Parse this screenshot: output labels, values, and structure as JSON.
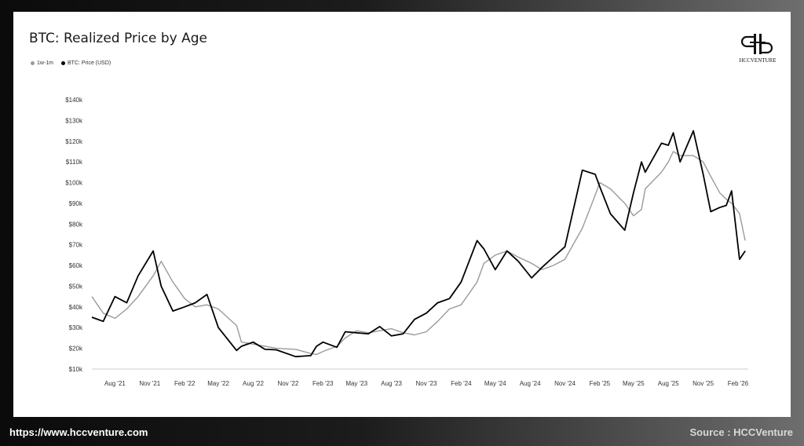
{
  "footer": {
    "website": "https://www.hccventure.com",
    "source": "Source : HCCVenture"
  },
  "logo": {
    "text": "HCCVENTURE"
  },
  "colors": {
    "price": "#000000",
    "realized": "#9a9a9a",
    "axis": "#cccccc",
    "tick": "#333333"
  },
  "chart_data": {
    "type": "line",
    "title": "BTC: Realized Price by Age",
    "xlabel": "",
    "ylabel": "",
    "legend_position": "top-left",
    "grid": false,
    "ylim": [
      10000,
      140000
    ],
    "yticks": [
      10000,
      20000,
      30000,
      40000,
      50000,
      60000,
      70000,
      80000,
      90000,
      100000,
      110000,
      120000,
      130000,
      140000
    ],
    "ytick_labels": [
      "$10k",
      "$20k",
      "$30k",
      "$40k",
      "$50k",
      "$60k",
      "$70k",
      "$80k",
      "$90k",
      "$100k",
      "$110k",
      "$120k",
      "$130k",
      "$140k"
    ],
    "xlim": [
      "2021-06-01",
      "2026-02-28"
    ],
    "xticks": [
      "2021-08-01",
      "2021-11-01",
      "2022-02-01",
      "2022-05-01",
      "2022-08-01",
      "2022-11-01",
      "2023-02-01",
      "2023-05-01",
      "2023-08-01",
      "2023-11-01",
      "2024-02-01",
      "2024-05-01",
      "2024-08-01",
      "2024-11-01",
      "2025-02-01",
      "2025-05-01",
      "2025-08-01",
      "2025-11-01",
      "2026-02-01"
    ],
    "xtick_labels": [
      "Aug '21",
      "Nov '21",
      "Feb '22",
      "May '22",
      "Aug '22",
      "Nov '22",
      "Feb '23",
      "May '23",
      "Aug '23",
      "Nov '23",
      "Feb '24",
      "May '24",
      "Aug '24",
      "Nov '24",
      "Feb '25",
      "May '25",
      "Aug '25",
      "Nov '25",
      "Feb '26"
    ],
    "x": [
      "2021-06-01",
      "2021-07-01",
      "2021-08-01",
      "2021-09-01",
      "2021-10-01",
      "2021-11-10",
      "2021-12-01",
      "2022-01-01",
      "2022-02-01",
      "2022-03-01",
      "2022-04-01",
      "2022-05-01",
      "2022-06-18",
      "2022-07-01",
      "2022-08-01",
      "2022-09-01",
      "2022-10-01",
      "2022-11-21",
      "2022-12-31",
      "2023-01-15",
      "2023-02-01",
      "2023-03-10",
      "2023-04-01",
      "2023-05-01",
      "2023-06-01",
      "2023-07-01",
      "2023-08-01",
      "2023-09-01",
      "2023-10-01",
      "2023-11-01",
      "2023-12-01",
      "2024-01-01",
      "2024-02-01",
      "2024-03-14",
      "2024-04-01",
      "2024-05-01",
      "2024-06-01",
      "2024-07-01",
      "2024-08-05",
      "2024-09-01",
      "2024-10-01",
      "2024-11-01",
      "2024-12-17",
      "2025-01-20",
      "2025-02-01",
      "2025-03-01",
      "2025-04-08",
      "2025-05-01",
      "2025-05-22",
      "2025-06-01",
      "2025-07-14",
      "2025-08-01",
      "2025-08-14",
      "2025-09-01",
      "2025-10-06",
      "2025-11-01",
      "2025-11-21",
      "2025-12-15",
      "2026-01-01",
      "2026-01-15",
      "2026-02-05",
      "2026-02-20"
    ],
    "series": [
      {
        "name": "1w-1m",
        "values": [
          45000,
          37000,
          34500,
          39000,
          45000,
          55000,
          62000,
          52000,
          44000,
          40000,
          41000,
          39000,
          31000,
          23000,
          22000,
          21000,
          20000,
          19500,
          17500,
          17000,
          18500,
          21000,
          25000,
          28500,
          27500,
          28500,
          29500,
          27500,
          26500,
          28000,
          33000,
          39000,
          41000,
          52000,
          61000,
          65000,
          67000,
          64000,
          61000,
          58000,
          60000,
          63000,
          78000,
          94000,
          100000,
          97000,
          90000,
          84000,
          87000,
          97000,
          105000,
          110000,
          115000,
          113000,
          113000,
          110000,
          103000,
          95000,
          92000,
          90000,
          85000,
          72000
        ]
      },
      {
        "name": "BTC: Price (USD)",
        "values": [
          35000,
          33000,
          45000,
          42000,
          55000,
          67000,
          50000,
          38000,
          40000,
          42000,
          46000,
          30000,
          19000,
          21000,
          23000,
          19500,
          19300,
          16000,
          16500,
          21000,
          23000,
          20500,
          28000,
          27500,
          27000,
          30500,
          26000,
          27000,
          34000,
          37000,
          42000,
          44000,
          52000,
          72000,
          68000,
          58000,
          67000,
          62000,
          54000,
          59000,
          64000,
          69000,
          106000,
          104000,
          98000,
          85000,
          77000,
          95000,
          110000,
          105000,
          119000,
          118000,
          124000,
          110000,
          125000,
          104000,
          86000,
          88000,
          89000,
          96000,
          63000,
          67000
        ]
      }
    ]
  }
}
